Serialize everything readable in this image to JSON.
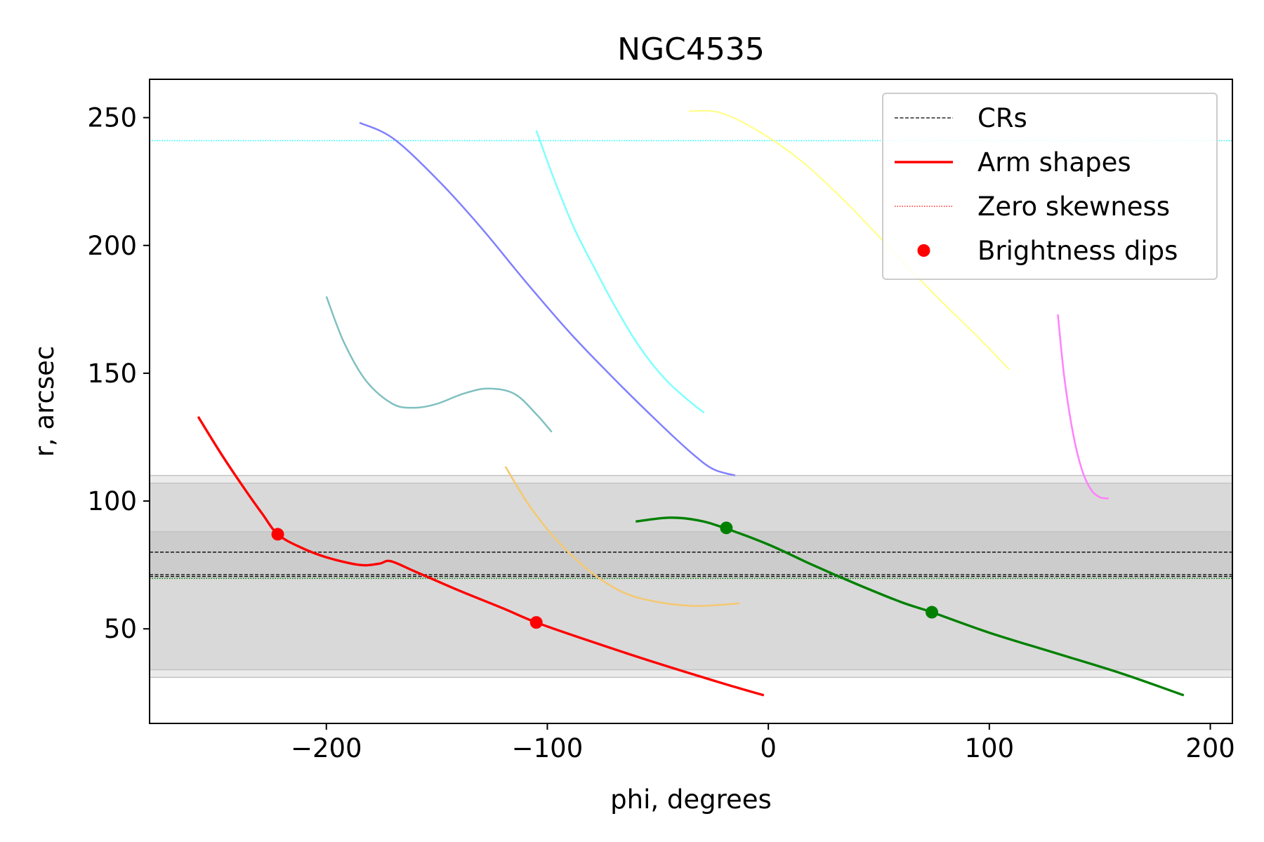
{
  "chart_data": {
    "type": "line",
    "title": "NGC4535",
    "xlabel": "phi, degrees",
    "ylabel": "r, arcsec",
    "xlim": [
      -280,
      210
    ],
    "ylim": [
      13,
      265
    ],
    "xticks": [
      -200,
      -100,
      0,
      100,
      200
    ],
    "xtick_labels": [
      "−200",
      "−100",
      "0",
      "100",
      "200"
    ],
    "yticks": [
      50,
      100,
      150,
      200,
      250
    ],
    "ytick_labels": [
      "50",
      "100",
      "150",
      "200",
      "250"
    ],
    "grid": false,
    "legend_position": "top-right",
    "legend": [
      {
        "label": "CRs",
        "style": "dashed",
        "color": "#000000"
      },
      {
        "label": "Arm shapes",
        "style": "solid",
        "color": "#ff0000"
      },
      {
        "label": "Zero skewness",
        "style": "dotted",
        "color": "#ff0000"
      },
      {
        "label": "Brightness dips",
        "style": "marker",
        "color": "#ff0000"
      }
    ],
    "bands": [
      {
        "y0": 31,
        "y1": 110,
        "color": "#ebebeb"
      },
      {
        "y0": 34,
        "y1": 107,
        "color": "#d9d9d9"
      },
      {
        "y0": 70,
        "y1": 88,
        "color": "#cccccc"
      }
    ],
    "cr_lines": [
      80,
      71.2,
      70.5
    ],
    "zero_skewness_lines": [
      {
        "y": 241,
        "color": "#00ffff"
      },
      {
        "y": 69.7,
        "color": "#008000"
      }
    ],
    "series": [
      {
        "color": "#ff0000",
        "width": 3.4,
        "points": [
          [
            -258,
            133
          ],
          [
            -248,
            119
          ],
          [
            -238,
            106
          ],
          [
            -229,
            95
          ],
          [
            -222,
            87
          ],
          [
            -212,
            82
          ],
          [
            -200,
            78
          ],
          [
            -185,
            75
          ],
          [
            -176,
            75.5
          ],
          [
            -171,
            76.5
          ],
          [
            -160,
            72.5
          ],
          [
            -140,
            65
          ],
          [
            -120,
            58
          ],
          [
            -105,
            52.5
          ],
          [
            -80,
            45
          ],
          [
            -50,
            36.5
          ],
          [
            -20,
            28.5
          ],
          [
            -2,
            24
          ]
        ]
      },
      {
        "color": "#008000",
        "width": 3.4,
        "points": [
          [
            -60,
            92
          ],
          [
            -45,
            93.5
          ],
          [
            -32,
            92.5
          ],
          [
            -20,
            89.5
          ],
          [
            0,
            83
          ],
          [
            20,
            75
          ],
          [
            40,
            67.5
          ],
          [
            60,
            60.5
          ],
          [
            74,
            56.5
          ],
          [
            100,
            48.5
          ],
          [
            130,
            40.5
          ],
          [
            160,
            32.5
          ],
          [
            188,
            24
          ]
        ]
      },
      {
        "color": "#8080ff",
        "width": 2.5,
        "points": [
          [
            -185,
            248
          ],
          [
            -170,
            242
          ],
          [
            -150,
            226
          ],
          [
            -130,
            207
          ],
          [
            -110,
            186
          ],
          [
            -90,
            166
          ],
          [
            -70,
            148
          ],
          [
            -50,
            131
          ],
          [
            -35,
            119
          ],
          [
            -25,
            112.5
          ],
          [
            -15,
            110
          ]
        ]
      },
      {
        "color": "#80ffff",
        "width": 2.5,
        "points": [
          [
            -105,
            245
          ],
          [
            -97,
            226
          ],
          [
            -88,
            207
          ],
          [
            -78,
            190
          ],
          [
            -68,
            174
          ],
          [
            -58,
            160
          ],
          [
            -47,
            148
          ],
          [
            -37,
            140
          ],
          [
            -29,
            134.5
          ]
        ]
      },
      {
        "color": "#ffff80",
        "width": 2.0,
        "points": [
          [
            -36,
            252.5
          ],
          [
            -22,
            252
          ],
          [
            -5,
            245
          ],
          [
            15,
            233
          ],
          [
            35,
            217
          ],
          [
            55,
            199
          ],
          [
            75,
            181
          ],
          [
            95,
            164
          ],
          [
            109,
            151.5
          ]
        ]
      },
      {
        "color": "#80c0c0",
        "width": 2.5,
        "points": [
          [
            -200,
            180
          ],
          [
            -192,
            162
          ],
          [
            -182,
            147
          ],
          [
            -170,
            138
          ],
          [
            -160,
            136.5
          ],
          [
            -150,
            138
          ],
          [
            -138,
            142
          ],
          [
            -127,
            144
          ],
          [
            -115,
            142
          ],
          [
            -105,
            134
          ],
          [
            -98,
            127
          ]
        ]
      },
      {
        "color": "#f5c870",
        "width": 2.5,
        "points": [
          [
            -119,
            113.5
          ],
          [
            -108,
            98
          ],
          [
            -95,
            84
          ],
          [
            -80,
            72
          ],
          [
            -65,
            64
          ],
          [
            -50,
            60.5
          ],
          [
            -35,
            59
          ],
          [
            -25,
            59.2
          ],
          [
            -13,
            60
          ]
        ]
      },
      {
        "color": "#ff80ff",
        "width": 2.5,
        "points": [
          [
            131,
            173
          ],
          [
            134,
            148
          ],
          [
            138,
            126
          ],
          [
            142,
            112
          ],
          [
            146,
            104.5
          ],
          [
            150,
            101.5
          ],
          [
            154,
            101
          ]
        ]
      }
    ],
    "dips": [
      {
        "x": -222,
        "y": 87,
        "color": "#ff0000"
      },
      {
        "x": -105,
        "y": 52.5,
        "color": "#ff0000"
      },
      {
        "x": -19,
        "y": 89.5,
        "color": "#008000"
      },
      {
        "x": 74,
        "y": 56.5,
        "color": "#008000"
      }
    ]
  }
}
